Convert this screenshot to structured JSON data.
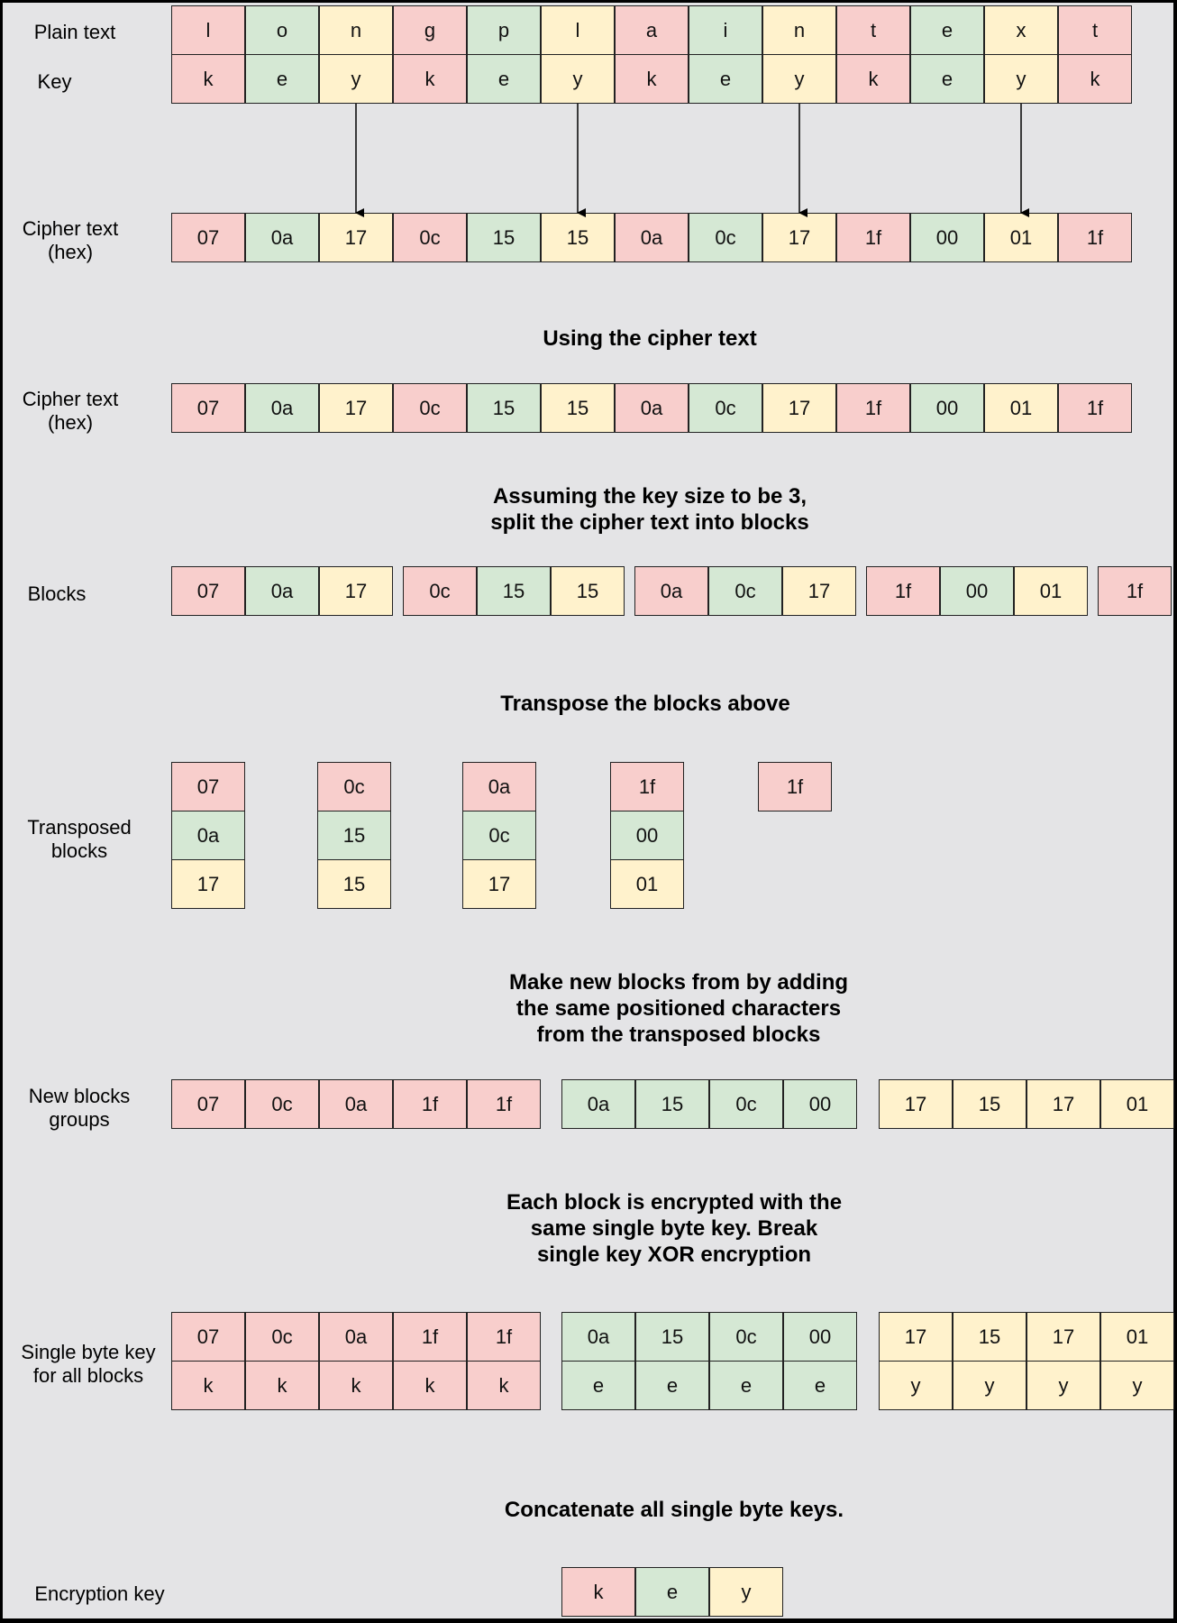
{
  "colors": {
    "k_pink": "#f8cecc",
    "e_green": "#d5e8d4",
    "y_yellow": "#fff2cc",
    "background": "#e4e4e6",
    "frame": "#000000"
  },
  "labels": {
    "plain_text": "Plain text",
    "key": "Key",
    "cipher_text_1": "Cipher text\n(hex)",
    "cipher_text_2": "Cipher text\n(hex)",
    "blocks": "Blocks",
    "transposed_blocks": "Transposed\nblocks",
    "new_blocks_groups": "New blocks\ngroups",
    "single_byte_key": "Single byte key\nfor all blocks",
    "encryption_key": "Encryption key"
  },
  "titles": {
    "using_cipher": "Using the cipher text",
    "assuming": "Assuming the key size to be 3,\nsplit the cipher text into blocks",
    "transpose": "Transpose the blocks above",
    "make_new": "Make new blocks from by adding\nthe same positioned characters\nfrom the transposed blocks",
    "each_block": "Each block is encrypted with the\nsame single byte key. Break\nsingle key XOR encryption",
    "concatenate": "Concatenate all single byte keys."
  },
  "plain_text": [
    "l",
    "o",
    "n",
    "g",
    "p",
    "l",
    "a",
    "i",
    "n",
    "t",
    "e",
    "x",
    "t"
  ],
  "key_row": [
    "k",
    "e",
    "y",
    "k",
    "e",
    "y",
    "k",
    "e",
    "y",
    "k",
    "e",
    "y",
    "k"
  ],
  "cipher_hex": [
    "07",
    "0a",
    "17",
    "0c",
    "15",
    "15",
    "0a",
    "0c",
    "17",
    "1f",
    "00",
    "01",
    "1f"
  ],
  "blocks": [
    [
      "07",
      "0a",
      "17"
    ],
    [
      "0c",
      "15",
      "15"
    ],
    [
      "0a",
      "0c",
      "17"
    ],
    [
      "1f",
      "00",
      "01"
    ],
    [
      "1f"
    ]
  ],
  "transposed": [
    [
      "07",
      "0a",
      "17"
    ],
    [
      "0c",
      "15",
      "15"
    ],
    [
      "0a",
      "0c",
      "17"
    ],
    [
      "1f",
      "00",
      "01"
    ],
    [
      "1f"
    ]
  ],
  "new_groups": [
    [
      "07",
      "0c",
      "0a",
      "1f",
      "1f"
    ],
    [
      "0a",
      "15",
      "0c",
      "00"
    ],
    [
      "17",
      "15",
      "17",
      "01"
    ]
  ],
  "group_keys": [
    [
      "k",
      "k",
      "k",
      "k",
      "k"
    ],
    [
      "e",
      "e",
      "e",
      "e"
    ],
    [
      "y",
      "y",
      "y",
      "y"
    ]
  ],
  "encryption_key": [
    "k",
    "e",
    "y"
  ]
}
